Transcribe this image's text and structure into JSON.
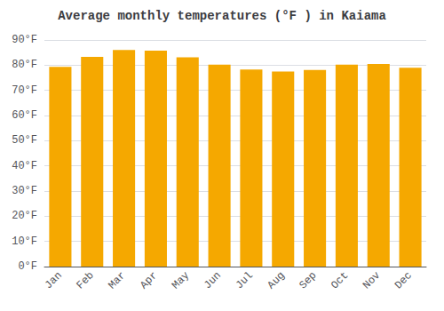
{
  "chart_data": {
    "type": "bar",
    "title": "Average monthly temperatures (°F ) in Kaiama",
    "categories": [
      "Jan",
      "Feb",
      "Mar",
      "Apr",
      "May",
      "Jun",
      "Jul",
      "Aug",
      "Sep",
      "Oct",
      "Nov",
      "Dec"
    ],
    "values": [
      79.3,
      83.3,
      86.0,
      85.8,
      83.1,
      80.2,
      78.3,
      77.5,
      78.1,
      80.2,
      80.5,
      79.0
    ],
    "color": "#F5A800",
    "ylim": [
      0,
      90
    ],
    "yticks": [
      {
        "value": 0,
        "label": "0°F"
      },
      {
        "value": 10,
        "label": "10°F"
      },
      {
        "value": 20,
        "label": "20°F"
      },
      {
        "value": 30,
        "label": "30°F"
      },
      {
        "value": 40,
        "label": "40°F"
      },
      {
        "value": 50,
        "label": "50°F"
      },
      {
        "value": 60,
        "label": "60°F"
      },
      {
        "value": 70,
        "label": "70°F"
      },
      {
        "value": 80,
        "label": "80°F"
      },
      {
        "value": 90,
        "label": "90°F"
      }
    ],
    "grid": true
  }
}
